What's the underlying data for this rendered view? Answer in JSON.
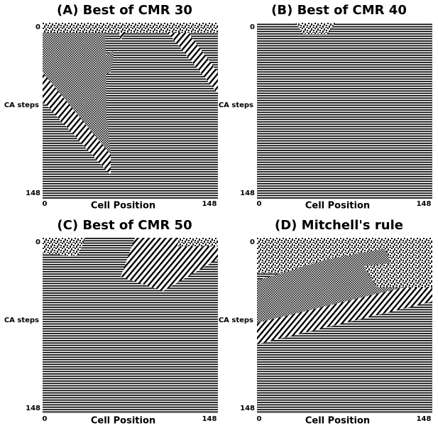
{
  "panels": [
    {
      "title": "(A) Best of CMR 30",
      "y_label": "CA steps",
      "x_label": "Cell Position",
      "y_ticks": [
        "0",
        "148"
      ],
      "x_ticks": [
        "0",
        "148"
      ]
    },
    {
      "title": "(B) Best of CMR 40",
      "y_label": "CA steps",
      "x_label": "Cell Position",
      "y_ticks": [
        "0",
        "148"
      ],
      "x_ticks": [
        "0",
        "148"
      ]
    },
    {
      "title": "(C) Best of CMR 50",
      "y_label": "CA steps",
      "x_label": "Cell Position",
      "y_ticks": [
        "0",
        "148"
      ],
      "x_ticks": [
        "0",
        "148"
      ]
    },
    {
      "title": "(D) Mitchell's rule",
      "y_label": "CA steps",
      "x_label": "Cell Position",
      "y_ticks": [
        "0",
        "148"
      ],
      "x_ticks": [
        "0",
        "148"
      ]
    }
  ]
}
